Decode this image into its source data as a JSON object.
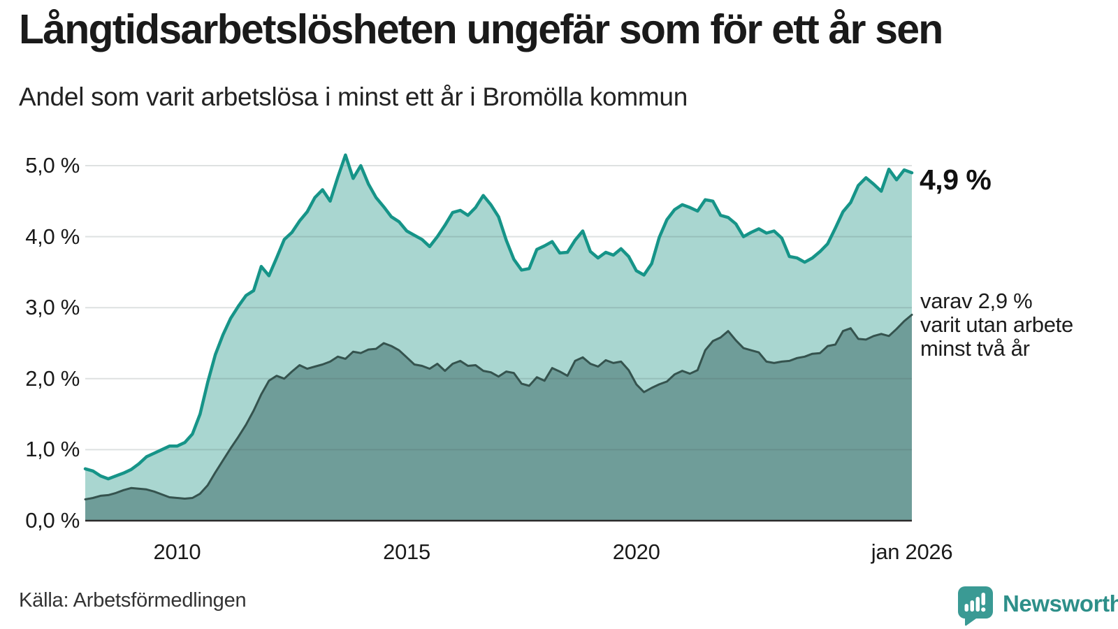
{
  "title": "Långtidsarbetslösheten ungefär som för ett år sen",
  "subtitle": "Andel som varit arbetslösa i minst ett år i Bromölla kommun",
  "source": "Källa: Arbetsförmedlingen",
  "annotations": {
    "latest_total": "4,9 %",
    "secondary_lines": [
      "varav 2,9 %",
      "varit utan arbete",
      "minst två år"
    ]
  },
  "branding": {
    "label": "Newsworthy",
    "icon": "newsworthy-speech-bubble-chart-icon",
    "icon_color": "#3a9a94",
    "text_color": "#2d8f89"
  },
  "colors": {
    "line_total": "#169488",
    "fill_total": "#a9d6d0",
    "line_two_years": "#35534e",
    "fill_two_years": "#6f9d99",
    "gridline": "rgba(70,90,88,0.18)",
    "baseline": "#2b2b2b",
    "text": "#1a1a1a"
  },
  "chart_data": {
    "type": "area",
    "title": "Långtidsarbetslösheten ungefär som för ett år sen",
    "subtitle": "Andel som varit arbetslösa i minst ett år i Bromölla kommun",
    "xlabel": "",
    "ylabel": "",
    "x_start": 2008.0,
    "x_end": 2026.0,
    "points_per_year": 6,
    "ylim": [
      0,
      5.4
    ],
    "grid": true,
    "legend_position": "right-annotations",
    "y_ticks": [
      {
        "label": "5,0 %",
        "value": 5
      },
      {
        "label": "4,0 %",
        "value": 4
      },
      {
        "label": "3,0 %",
        "value": 3
      },
      {
        "label": "2,0 %",
        "value": 2
      },
      {
        "label": "1,0 %",
        "value": 1
      },
      {
        "label": "0,0 %",
        "value": 0
      }
    ],
    "x_ticks": [
      {
        "label": "2010",
        "year": 2010
      },
      {
        "label": "2015",
        "year": 2015
      },
      {
        "label": "2020",
        "year": 2020
      },
      {
        "label": "jan 2026",
        "year": 2026
      }
    ],
    "series": [
      {
        "name": "arbetslösa minst ett år",
        "latest_label": "4,9 %",
        "latest_value": 4.9,
        "color": "#169488",
        "fill": "#a9d6d0",
        "values": [
          0.73,
          0.7,
          0.63,
          0.59,
          0.63,
          0.67,
          0.72,
          0.8,
          0.9,
          0.95,
          1.0,
          1.05,
          1.05,
          1.1,
          1.22,
          1.5,
          1.95,
          2.34,
          2.62,
          2.85,
          3.02,
          3.17,
          3.24,
          3.58,
          3.45,
          3.7,
          3.96,
          4.06,
          4.22,
          4.35,
          4.55,
          4.66,
          4.5,
          4.84,
          5.15,
          4.82,
          5.0,
          4.74,
          4.55,
          4.42,
          4.28,
          4.21,
          4.08,
          4.02,
          3.96,
          3.86,
          4.0,
          4.16,
          4.34,
          4.37,
          4.3,
          4.41,
          4.58,
          4.45,
          4.28,
          3.95,
          3.68,
          3.53,
          3.55,
          3.82,
          3.87,
          3.93,
          3.77,
          3.78,
          3.95,
          4.08,
          3.79,
          3.7,
          3.78,
          3.74,
          3.83,
          3.72,
          3.52,
          3.46,
          3.62,
          3.99,
          4.24,
          4.38,
          4.45,
          4.41,
          4.36,
          4.52,
          4.5,
          4.3,
          4.27,
          4.18,
          4.0,
          4.06,
          4.11,
          4.05,
          4.08,
          3.98,
          3.72,
          3.7,
          3.64,
          3.7,
          3.79,
          3.9,
          4.12,
          4.35,
          4.48,
          4.72,
          4.83,
          4.74,
          4.64,
          4.95,
          4.8,
          4.94,
          4.9
        ]
      },
      {
        "name": "varav utan arbete minst två år",
        "latest_label": "varav 2,9 %",
        "latest_value": 2.9,
        "color": "#35534e",
        "fill": "#6f9d99",
        "values": [
          0.3,
          0.32,
          0.35,
          0.36,
          0.39,
          0.43,
          0.46,
          0.45,
          0.44,
          0.41,
          0.37,
          0.33,
          0.32,
          0.31,
          0.32,
          0.38,
          0.5,
          0.68,
          0.85,
          1.02,
          1.18,
          1.35,
          1.55,
          1.78,
          1.97,
          2.04,
          2.0,
          2.1,
          2.19,
          2.14,
          2.17,
          2.2,
          2.24,
          2.31,
          2.28,
          2.38,
          2.36,
          2.41,
          2.42,
          2.5,
          2.46,
          2.4,
          2.3,
          2.2,
          2.18,
          2.14,
          2.21,
          2.11,
          2.21,
          2.25,
          2.18,
          2.19,
          2.11,
          2.09,
          2.03,
          2.1,
          2.08,
          1.93,
          1.9,
          2.02,
          1.97,
          2.15,
          2.1,
          2.04,
          2.25,
          2.3,
          2.21,
          2.17,
          2.26,
          2.22,
          2.24,
          2.12,
          1.92,
          1.81,
          1.87,
          1.92,
          1.96,
          2.06,
          2.11,
          2.07,
          2.12,
          2.4,
          2.53,
          2.58,
          2.67,
          2.54,
          2.43,
          2.4,
          2.37,
          2.24,
          2.22,
          2.24,
          2.25,
          2.29,
          2.31,
          2.35,
          2.36,
          2.46,
          2.48,
          2.67,
          2.71,
          2.56,
          2.55,
          2.6,
          2.63,
          2.6,
          2.7,
          2.81,
          2.9
        ]
      }
    ]
  }
}
